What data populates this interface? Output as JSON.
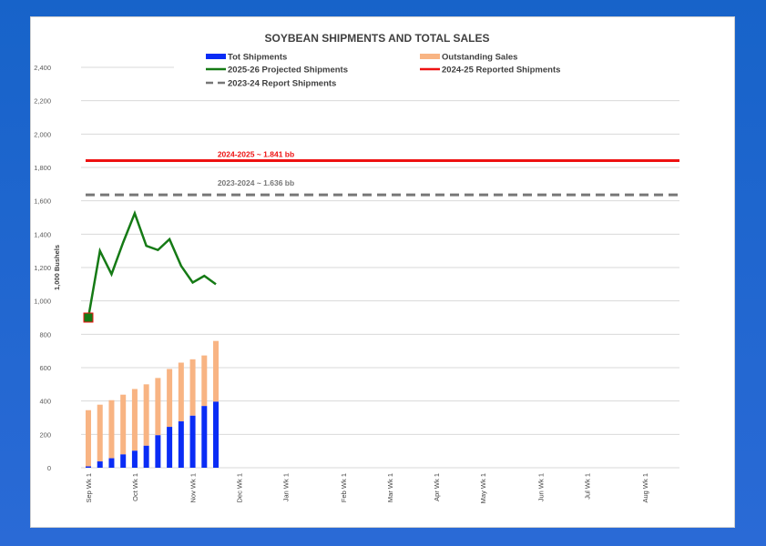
{
  "chart_data": {
    "type": "bar",
    "title": "SOYBEAN SHIPMENTS AND TOTAL SALES",
    "ylabel": "1,000 Bushels",
    "xlabel": "",
    "ylim": [
      0,
      2400
    ],
    "y_ticks": [
      "0",
      "200",
      "400",
      "600",
      "800",
      "1,000",
      "1,200",
      "1,400",
      "1,600",
      "1,800",
      "2,000",
      "2,200",
      "2,400"
    ],
    "x_ticks": [
      {
        "label": "Sep Wk 1",
        "week": 0
      },
      {
        "label": "Oct Wk 1",
        "week": 4
      },
      {
        "label": "Nov Wk 1",
        "week": 9
      },
      {
        "label": "Dec Wk 1",
        "week": 13
      },
      {
        "label": "Jan Wk 1",
        "week": 17
      },
      {
        "label": "Feb Wk 1",
        "week": 22
      },
      {
        "label": "Mar Wk 1",
        "week": 26
      },
      {
        "label": "Apr Wk 1",
        "week": 30
      },
      {
        "label": "May Wk 1",
        "week": 34
      },
      {
        "label": "Jun Wk 1",
        "week": 39
      },
      {
        "label": "Jul Wk 1",
        "week": 43
      },
      {
        "label": "Aug Wk 1",
        "week": 48
      }
    ],
    "grid": true,
    "legend_position": "top",
    "series": [
      {
        "name": "Tot Shipments",
        "kind": "stacked-bar",
        "color": "#0a2cf5",
        "values": [
          8,
          38,
          57,
          80,
          102,
          132,
          195,
          245,
          278,
          312,
          370,
          396
        ]
      },
      {
        "name": "Outstanding Sales",
        "kind": "stacked-bar",
        "color": "#f8b483",
        "values": [
          337,
          340,
          348,
          358,
          370,
          368,
          343,
          347,
          352,
          338,
          303,
          364
        ]
      },
      {
        "name": "2025-26 Projected Shipments",
        "kind": "line",
        "color": "#157a15",
        "values": [
          900,
          1300,
          1160,
          1350,
          1525,
          1330,
          1305,
          1370,
          1210,
          1110,
          1150,
          1100
        ]
      },
      {
        "name": "2024-25 Reported Shipments",
        "kind": "hline",
        "color": "#ee1111",
        "value": 1841
      },
      {
        "name": "2023-24 Report Shipments",
        "kind": "hline-dashed",
        "color": "#777777",
        "value": 1636
      }
    ],
    "annotations": [
      {
        "text": "2024-2025 ~ 1.841 bb",
        "color": "#ee1111"
      },
      {
        "text": "2023-2024 ~ 1.636 bb",
        "color": "#777777"
      }
    ]
  }
}
